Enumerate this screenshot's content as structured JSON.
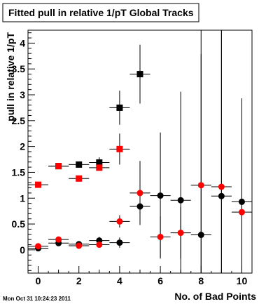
{
  "chart_data": {
    "type": "scatter",
    "title": "Fitted pull in relative 1/pT  Global Tracks",
    "xlabel": "No. of Bad Points",
    "ylabel": "pull in relative 1/pT",
    "xlim": [
      -0.5,
      10.5
    ],
    "ylim": [
      -0.45,
      4.25
    ],
    "x_ticks": [
      "0",
      "2",
      "4",
      "6",
      "8",
      "10"
    ],
    "y_ticks": [
      "0",
      "0.5",
      "1",
      "1.5",
      "2",
      "2.5",
      "3",
      "3.5",
      "4"
    ],
    "grid": false,
    "series": [
      {
        "marker": "circle",
        "color": "#000000",
        "points": [
          {
            "x": 0,
            "y": 0.03,
            "yerr": 0.03
          },
          {
            "x": 1,
            "y": 0.13,
            "yerr": 0.03
          },
          {
            "x": 2,
            "y": 0.11,
            "yerr": 0.05
          },
          {
            "x": 3,
            "y": 0.18,
            "yerr": 0.07
          },
          {
            "x": 4,
            "y": 0.14,
            "yerr": 0.1
          },
          {
            "x": 5,
            "y": 0.84,
            "yerr": 0.35
          },
          {
            "x": 6,
            "y": 1.05,
            "yerr": 1.22
          },
          {
            "x": 7,
            "y": 0.96,
            "yerr": 2.1
          },
          {
            "x": 8,
            "y": 0.29,
            "yerr": 3.5
          },
          {
            "x": 9,
            "y": 1.04,
            "yerr": 3.5
          },
          {
            "x": 10,
            "y": 0.93,
            "yerr": 2.0
          }
        ]
      },
      {
        "marker": "circle",
        "color": "#ff0000",
        "points": [
          {
            "x": 0,
            "y": 0.07,
            "yerr": 0.02
          },
          {
            "x": 1,
            "y": 0.2,
            "yerr": 0.03
          },
          {
            "x": 2,
            "y": 0.08,
            "yerr": 0.05
          },
          {
            "x": 3,
            "y": 0.1,
            "yerr": 0.06
          },
          {
            "x": 4,
            "y": 0.55,
            "yerr": 0.12
          },
          {
            "x": 5,
            "y": 1.1,
            "yerr": 0.62
          },
          {
            "x": 6,
            "y": 0.25,
            "yerr": 0.4
          },
          {
            "x": 7,
            "y": 0.33,
            "yerr": 0.5
          },
          {
            "x": 8,
            "y": 1.25,
            "yerr": 3.5
          },
          {
            "x": 9,
            "y": 1.22,
            "yerr": 3.5
          },
          {
            "x": 10,
            "y": 0.73,
            "yerr": 1.2
          }
        ]
      },
      {
        "marker": "square",
        "color": "#000000",
        "points": [
          {
            "x": 1,
            "y": 1.62,
            "yerr": 0.02
          },
          {
            "x": 2,
            "y": 1.65,
            "yerr": 0.04
          },
          {
            "x": 3,
            "y": 1.69,
            "yerr": 0.1
          },
          {
            "x": 4,
            "y": 2.75,
            "yerr": 0.33
          },
          {
            "x": 5,
            "y": 3.4,
            "yerr": 0.57
          }
        ]
      },
      {
        "marker": "square",
        "color": "#ff0000",
        "points": [
          {
            "x": 0,
            "y": 1.26,
            "yerr": 0.02
          },
          {
            "x": 1,
            "y": 1.62,
            "yerr": 0.02
          },
          {
            "x": 2,
            "y": 1.38,
            "yerr": 0.03
          },
          {
            "x": 3,
            "y": 1.59,
            "yerr": 0.05
          },
          {
            "x": 4,
            "y": 1.95,
            "yerr": 0.3
          }
        ]
      }
    ]
  },
  "footer": {
    "date_stamp": "Mon Oct 31 10:24:23 2011"
  },
  "colors": {
    "frame": "#000000",
    "background": "#ffffff"
  }
}
